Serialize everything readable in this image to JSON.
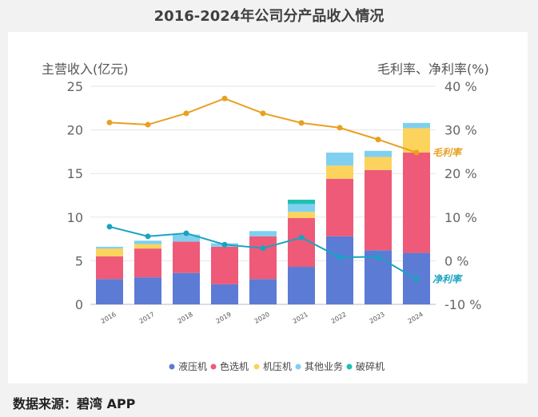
{
  "page": {
    "title": "2016-2024年公司分产品收入情况",
    "source": "数据来源：碧湾 APP"
  },
  "chart_data": {
    "type": "bar",
    "stacked": true,
    "title": "2016-2024年公司分产品收入情况",
    "ylabel_left": "主营收入(亿元)",
    "ylabel_right": "毛利率、净利率(%)",
    "categories": [
      "2016",
      "2017",
      "2018",
      "2019",
      "2020",
      "2021",
      "2022",
      "2023",
      "2024"
    ],
    "ylim_left": [
      0,
      25
    ],
    "yticks_left": [
      "0",
      "5",
      "10",
      "15",
      "20",
      "25"
    ],
    "ylim_right": [
      -10,
      40
    ],
    "yticks_right": [
      "-10 %",
      "0 %",
      "10 %",
      "20 %",
      "30 %",
      "40 %"
    ],
    "series": [
      {
        "name": "液压机",
        "color": "#5b7bd5",
        "values": [
          2.9,
          3.1,
          3.6,
          2.3,
          2.9,
          4.3,
          7.8,
          6.2,
          5.9
        ]
      },
      {
        "name": "色选机",
        "color": "#ee5a78",
        "values": [
          2.6,
          3.3,
          3.6,
          4.3,
          4.9,
          5.6,
          6.6,
          9.2,
          11.5
        ]
      },
      {
        "name": "机压机",
        "color": "#fcd35c",
        "values": [
          0.9,
          0.5,
          0.0,
          0.0,
          0.0,
          0.7,
          1.5,
          1.5,
          2.8
        ]
      },
      {
        "name": "其他业务",
        "color": "#7fd0f0",
        "values": [
          0.2,
          0.4,
          0.8,
          0.4,
          0.6,
          0.9,
          1.5,
          0.7,
          0.6
        ]
      },
      {
        "name": "破碎机",
        "color": "#20c0b0",
        "values": [
          0.0,
          0.0,
          0.0,
          0.0,
          0.0,
          0.5,
          0.0,
          0.0,
          0.0
        ]
      }
    ],
    "lines": [
      {
        "name": "毛利率",
        "label": "毛利率",
        "color": "#e8a020",
        "values": [
          31.7,
          31.2,
          33.8,
          37.2,
          33.8,
          31.6,
          30.5,
          27.8,
          24.8
        ]
      },
      {
        "name": "净利率",
        "label": "净利率",
        "color": "#1aa3c0",
        "values": [
          7.8,
          5.6,
          6.3,
          3.7,
          2.9,
          5.3,
          0.8,
          0.9,
          -4.2
        ]
      }
    ],
    "legend_position": "bottom"
  }
}
